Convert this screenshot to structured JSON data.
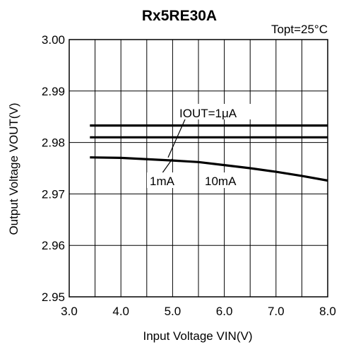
{
  "chart_data": {
    "type": "line",
    "title": "Rx5RE30A",
    "condition": "Topt=25°C",
    "xlabel": "Input Voltage VIN(V)",
    "ylabel": "Output Voltage VOUT(V)",
    "xlim": [
      3.0,
      8.0
    ],
    "ylim": [
      2.95,
      3.0
    ],
    "x_ticks": [
      "3.0",
      "4.0",
      "5.0",
      "6.0",
      "7.0",
      "8.0"
    ],
    "y_ticks": [
      "3.00",
      "2.99",
      "2.98",
      "2.97",
      "2.96",
      "2.95"
    ],
    "x_tick_values": [
      3.0,
      4.0,
      5.0,
      6.0,
      7.0,
      8.0
    ],
    "y_tick_values": [
      3.0,
      2.99,
      2.98,
      2.97,
      2.96,
      2.95
    ],
    "grid": true,
    "annotations": [
      "IOUT=1μA",
      "1mA",
      "10mA"
    ],
    "series": [
      {
        "x": [
          3.4,
          8.0
        ],
        "y": [
          2.9833,
          2.9833
        ]
      },
      {
        "x": [
          3.4,
          8.0
        ],
        "y": [
          2.981,
          2.981
        ]
      },
      {
        "x": [
          3.4,
          4.0,
          5.0,
          5.5,
          6.0,
          6.5,
          7.0,
          7.5,
          8.0
        ],
        "y": [
          2.9771,
          2.977,
          2.9765,
          2.9762,
          2.9756,
          2.975,
          2.9743,
          2.9735,
          2.9726
        ]
      }
    ]
  }
}
